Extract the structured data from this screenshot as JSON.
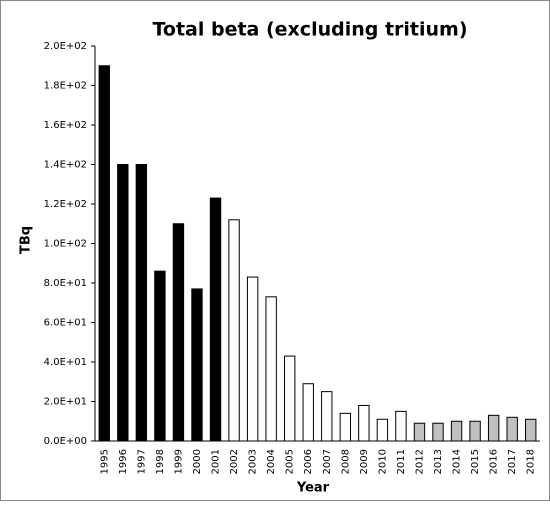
{
  "chart_data": {
    "type": "bar",
    "title": "Total beta (excluding tritium)",
    "y_label": "TBq",
    "x_label": "Year",
    "categories": [
      "1995",
      "1996",
      "1997",
      "1998",
      "1999",
      "2000",
      "2001",
      "2002",
      "2003",
      "2004",
      "2005",
      "2006",
      "2007",
      "2008",
      "2009",
      "2010",
      "2011",
      "2012",
      "2013",
      "2014",
      "2015",
      "2016",
      "2017",
      "2018"
    ],
    "values": [
      190,
      140,
      140,
      86,
      110,
      77,
      123,
      112,
      83,
      73,
      43,
      29,
      25,
      14,
      18,
      11,
      15,
      9,
      9,
      10,
      10,
      13,
      12,
      11
    ],
    "colors": [
      "#000000",
      "#000000",
      "#000000",
      "#000000",
      "#000000",
      "#000000",
      "#000000",
      "#ffffff",
      "#ffffff",
      "#ffffff",
      "#ffffff",
      "#ffffff",
      "#ffffff",
      "#ffffff",
      "#ffffff",
      "#ffffff",
      "#ffffff",
      "#c0c0c0",
      "#c0c0c0",
      "#c0c0c0",
      "#c0c0c0",
      "#c0c0c0",
      "#c0c0c0",
      "#c0c0c0"
    ],
    "ylim": [
      0,
      200
    ],
    "yticks": [
      {
        "value": 0,
        "label": "0.0E+00"
      },
      {
        "value": 20,
        "label": "2.0E+01"
      },
      {
        "value": 40,
        "label": "4.0E+01"
      },
      {
        "value": 60,
        "label": "6.0E+01"
      },
      {
        "value": 80,
        "label": "8.0E+01"
      },
      {
        "value": 100,
        "label": "1.0E+02"
      },
      {
        "value": 120,
        "label": "1.2E+02"
      },
      {
        "value": 140,
        "label": "1.4E+02"
      },
      {
        "value": 160,
        "label": "1.6E+02"
      },
      {
        "value": 180,
        "label": "1.8E+02"
      },
      {
        "value": 200,
        "label": "2.0E+02"
      }
    ],
    "grid": false
  }
}
